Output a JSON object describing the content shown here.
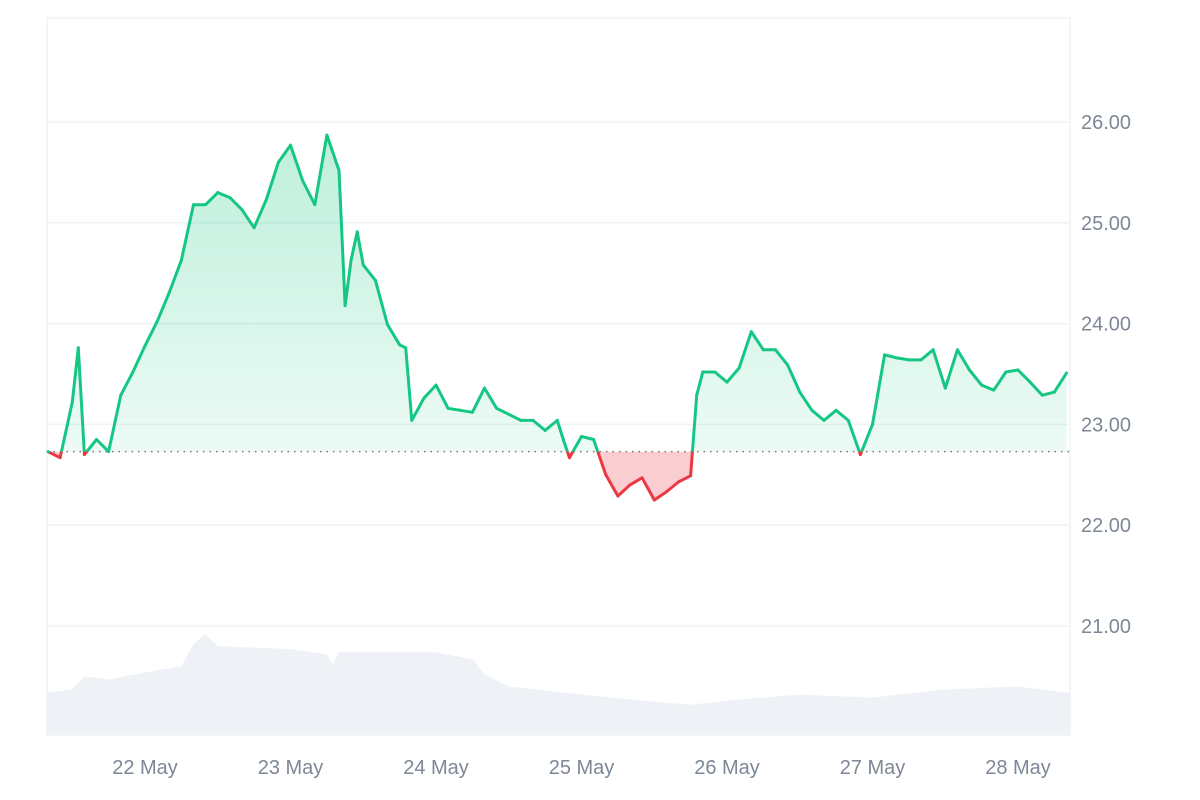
{
  "chart_data": {
    "type": "line",
    "title": "",
    "xlabel": "",
    "ylabel": "",
    "ylim": [
      20,
      27
    ],
    "grid": true,
    "baseline_price": 22.73,
    "y_ticks": [
      "21.00",
      "22.00",
      "23.00",
      "24.00",
      "25.00",
      "26.00"
    ],
    "x_ticks": [
      "22 May",
      "23 May",
      "24 May",
      "25 May",
      "26 May",
      "27 May",
      "28 May"
    ],
    "colors": {
      "up": "#16c784",
      "down": "#ea3943",
      "grid": "#eff2f5",
      "volume": "#eef1f5",
      "axis_text": "#7d8796"
    },
    "price": [
      [
        "21 May 08:00",
        22.73
      ],
      [
        "21 May 10:00",
        22.67
      ],
      [
        "21 May 12:00",
        23.22
      ],
      [
        "21 May 13:00",
        23.76
      ],
      [
        "21 May 14:00",
        22.7
      ],
      [
        "21 May 16:00",
        22.85
      ],
      [
        "21 May 18:00",
        22.73
      ],
      [
        "21 May 20:00",
        23.29
      ],
      [
        "21 May 22:00",
        23.52
      ],
      [
        "22 May 00:00",
        23.78
      ],
      [
        "22 May 02:00",
        24.02
      ],
      [
        "22 May 04:00",
        24.31
      ],
      [
        "22 May 06:00",
        24.63
      ],
      [
        "22 May 08:00",
        25.18
      ],
      [
        "22 May 10:00",
        25.18
      ],
      [
        "22 May 12:00",
        25.3
      ],
      [
        "22 May 14:00",
        25.25
      ],
      [
        "22 May 16:00",
        25.13
      ],
      [
        "22 May 18:00",
        24.95
      ],
      [
        "22 May 20:00",
        25.23
      ],
      [
        "22 May 22:00",
        25.6
      ],
      [
        "23 May 00:00",
        25.77
      ],
      [
        "23 May 02:00",
        25.42
      ],
      [
        "23 May 04:00",
        25.18
      ],
      [
        "23 May 06:00",
        25.87
      ],
      [
        "23 May 08:00",
        25.52
      ],
      [
        "23 May 09:00",
        24.18
      ],
      [
        "23 May 10:00",
        24.63
      ],
      [
        "23 May 11:00",
        24.91
      ],
      [
        "23 May 12:00",
        24.58
      ],
      [
        "23 May 14:00",
        24.43
      ],
      [
        "23 May 16:00",
        23.99
      ],
      [
        "23 May 18:00",
        23.79
      ],
      [
        "23 May 19:00",
        23.76
      ],
      [
        "23 May 20:00",
        23.04
      ],
      [
        "23 May 22:00",
        23.26
      ],
      [
        "24 May 00:00",
        23.39
      ],
      [
        "24 May 02:00",
        23.16
      ],
      [
        "24 May 04:00",
        23.14
      ],
      [
        "24 May 06:00",
        23.12
      ],
      [
        "24 May 08:00",
        23.36
      ],
      [
        "24 May 10:00",
        23.16
      ],
      [
        "24 May 12:00",
        23.1
      ],
      [
        "24 May 14:00",
        23.04
      ],
      [
        "24 May 16:00",
        23.04
      ],
      [
        "24 May 18:00",
        22.94
      ],
      [
        "24 May 20:00",
        23.04
      ],
      [
        "24 May 21:00",
        22.85
      ],
      [
        "24 May 22:00",
        22.67
      ],
      [
        "25 May 00:00",
        22.88
      ],
      [
        "25 May 02:00",
        22.85
      ],
      [
        "25 May 04:00",
        22.5
      ],
      [
        "25 May 06:00",
        22.29
      ],
      [
        "25 May 08:00",
        22.4
      ],
      [
        "25 May 10:00",
        22.47
      ],
      [
        "25 May 12:00",
        22.25
      ],
      [
        "25 May 14:00",
        22.33
      ],
      [
        "25 May 16:00",
        22.43
      ],
      [
        "25 May 18:00",
        22.49
      ],
      [
        "25 May 19:00",
        23.29
      ],
      [
        "25 May 20:00",
        23.52
      ],
      [
        "25 May 22:00",
        23.52
      ],
      [
        "26 May 00:00",
        23.42
      ],
      [
        "26 May 02:00",
        23.56
      ],
      [
        "26 May 04:00",
        23.92
      ],
      [
        "26 May 06:00",
        23.74
      ],
      [
        "26 May 08:00",
        23.74
      ],
      [
        "26 May 10:00",
        23.59
      ],
      [
        "26 May 12:00",
        23.32
      ],
      [
        "26 May 14:00",
        23.14
      ],
      [
        "26 May 16:00",
        23.04
      ],
      [
        "26 May 18:00",
        23.14
      ],
      [
        "26 May 20:00",
        23.04
      ],
      [
        "26 May 22:00",
        22.7
      ],
      [
        "27 May 00:00",
        23.0
      ],
      [
        "27 May 02:00",
        23.69
      ],
      [
        "27 May 04:00",
        23.66
      ],
      [
        "27 May 06:00",
        23.64
      ],
      [
        "27 May 08:00",
        23.64
      ],
      [
        "27 May 10:00",
        23.74
      ],
      [
        "27 May 12:00",
        23.36
      ],
      [
        "27 May 14:00",
        23.74
      ],
      [
        "27 May 16:00",
        23.54
      ],
      [
        "27 May 18:00",
        23.39
      ],
      [
        "27 May 20:00",
        23.34
      ],
      [
        "27 May 22:00",
        23.52
      ],
      [
        "28 May 00:00",
        23.54
      ],
      [
        "28 May 02:00",
        23.42
      ],
      [
        "28 May 04:00",
        23.29
      ],
      [
        "28 May 06:00",
        23.32
      ],
      [
        "28 May 08:00",
        23.51
      ]
    ],
    "volume_relative": [
      [
        "21 May 08:00",
        42
      ],
      [
        "21 May 12:00",
        45
      ],
      [
        "21 May 14:00",
        58
      ],
      [
        "21 May 18:00",
        55
      ],
      [
        "22 May 00:00",
        62
      ],
      [
        "22 May 06:00",
        68
      ],
      [
        "22 May 08:00",
        90
      ],
      [
        "22 May 10:00",
        100
      ],
      [
        "22 May 12:00",
        88
      ],
      [
        "23 May 00:00",
        85
      ],
      [
        "23 May 06:00",
        80
      ],
      [
        "23 May 07:00",
        70
      ],
      [
        "23 May 08:00",
        82
      ],
      [
        "24 May 00:00",
        82
      ],
      [
        "24 May 06:00",
        75
      ],
      [
        "24 May 08:00",
        60
      ],
      [
        "24 May 12:00",
        48
      ],
      [
        "25 May 00:00",
        40
      ],
      [
        "25 May 12:00",
        33
      ],
      [
        "25 May 18:00",
        30
      ],
      [
        "26 May 00:00",
        34
      ],
      [
        "26 May 12:00",
        40
      ],
      [
        "27 May 00:00",
        37
      ],
      [
        "27 May 12:00",
        45
      ],
      [
        "28 May 00:00",
        48
      ],
      [
        "28 May 08:00",
        42
      ]
    ]
  }
}
